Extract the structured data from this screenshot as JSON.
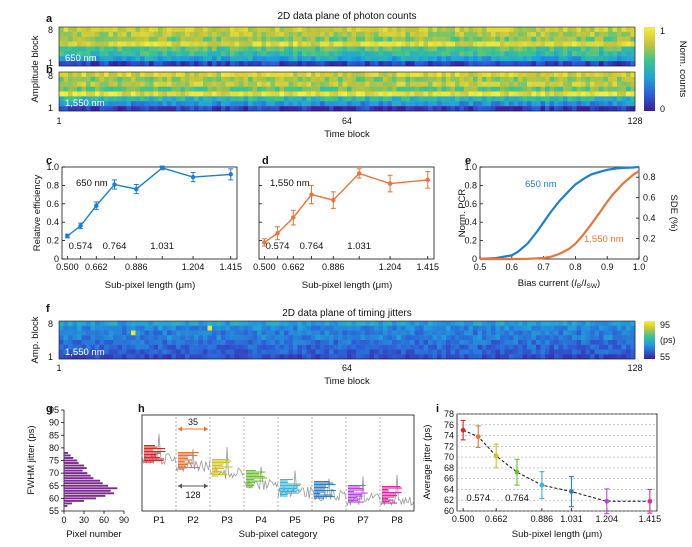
{
  "panels": {
    "a": "a",
    "b": "b",
    "c": "c",
    "d": "d",
    "e": "e",
    "f": "f",
    "g": "g",
    "h": "h",
    "i": "i"
  },
  "heatmap_ab": {
    "title": "2D data plane of photon counts",
    "ylabel": "Amplitude block",
    "xlabel": "Time block",
    "x_ticks": [
      "1",
      "64",
      "128"
    ],
    "y_ticks_a": [
      "8",
      "1"
    ],
    "y_ticks_b": [
      "8",
      "1"
    ],
    "label_a": "650 nm",
    "label_b": "1,550 nm",
    "colorbar_label": "Norm. counts",
    "colorbar_ticks": [
      "1",
      "0"
    ]
  },
  "heatmap_f": {
    "title": "2D data plane of timing jitters",
    "ylabel": "Amp. block",
    "xlabel": "Time block",
    "x_ticks": [
      "1",
      "64",
      "128"
    ],
    "y_ticks": [
      "8",
      "1"
    ],
    "label": "1,550 nm",
    "colorbar_label": "(ps)",
    "colorbar_ticks": [
      "95",
      "55"
    ]
  },
  "panel_h": {
    "xlabel": "Sub-pixel category",
    "categories": [
      "P1",
      "P2",
      "P3",
      "P4",
      "P5",
      "P6",
      "P7",
      "P8"
    ],
    "annot_35": "35",
    "annot_128": "128"
  },
  "colors": {
    "c_line": "#1a7fd0",
    "d_line": "#e8743a",
    "e_650": "#1a7fd0",
    "e_1550": "#e8743a",
    "g_bars": "#7b2d8e",
    "h_p1": "#d62728",
    "h_p2": "#e8743a",
    "h_p3": "#d4c020",
    "h_p4": "#6abf3a",
    "h_p5": "#35b7d8",
    "h_p6": "#2f7fc4",
    "h_p7": "#b64ad6",
    "h_p8": "#e02aa0"
  },
  "chart_data": [
    {
      "id": "c",
      "type": "line",
      "title": "",
      "annotation": "650 nm",
      "xlabel": "Sub-pixel length (μm)",
      "ylabel": "Relative efficiency",
      "x_tick_labels_bottom": [
        "0.500",
        "0.662",
        "0.886",
        "1.204",
        "1.415"
      ],
      "x_tick_labels_inner": [
        "0.574",
        "0.764",
        "1.031"
      ],
      "y_tick_labels": [
        "0",
        "0.2",
        "0.4",
        "0.6",
        "0.8",
        "1.0"
      ],
      "xlim": [
        0.47,
        1.45
      ],
      "ylim": [
        0,
        1.0
      ],
      "x": [
        0.5,
        0.574,
        0.662,
        0.764,
        0.886,
        1.031,
        1.204,
        1.415
      ],
      "y": [
        0.25,
        0.36,
        0.58,
        0.81,
        0.76,
        0.99,
        0.89,
        0.92
      ],
      "err": [
        0.02,
        0.03,
        0.04,
        0.05,
        0.05,
        0.02,
        0.05,
        0.06
      ]
    },
    {
      "id": "d",
      "type": "line",
      "title": "",
      "annotation": "1,550 nm",
      "xlabel": "Sub-pixel length (μm)",
      "ylabel": "",
      "x_tick_labels_bottom": [
        "0.500",
        "0.662",
        "0.886",
        "1.204",
        "1.415"
      ],
      "x_tick_labels_inner": [
        "0.574",
        "0.764",
        "1.031"
      ],
      "xlim": [
        0.47,
        1.45
      ],
      "ylim": [
        0,
        1.0
      ],
      "x": [
        0.5,
        0.574,
        0.662,
        0.764,
        0.886,
        1.031,
        1.204,
        1.415
      ],
      "y": [
        0.18,
        0.28,
        0.45,
        0.7,
        0.64,
        0.93,
        0.82,
        0.86
      ],
      "err": [
        0.04,
        0.07,
        0.08,
        0.1,
        0.09,
        0.05,
        0.09,
        0.09
      ]
    },
    {
      "id": "e",
      "type": "line",
      "xlabel": "Bias current (I_B/I_SW)",
      "xlabel_parts": [
        "Bias current (",
        "I",
        "B",
        "/",
        "I",
        "SW",
        ")"
      ],
      "ylabel_left": "Norm. PCR",
      "ylabel_right": "SDE (%)",
      "x_tick_labels": [
        "0.5",
        "0.6",
        "0.7",
        "0.8",
        "0.9",
        "1.0"
      ],
      "y_left_tick_labels": [
        "0",
        "0.2",
        "0.4",
        "0.6",
        "0.8",
        "1.0"
      ],
      "y_right_tick_labels": [
        "0",
        "0.2",
        "0.4",
        "0.6",
        "0.8"
      ],
      "xlim": [
        0.5,
        1.0
      ],
      "ylim_left": [
        0,
        1.0
      ],
      "ylim_right": [
        0,
        0.9
      ],
      "series": [
        {
          "name": "650 nm",
          "axis": "left",
          "x": [
            0.5,
            0.55,
            0.6,
            0.62,
            0.65,
            0.68,
            0.7,
            0.72,
            0.75,
            0.78,
            0.8,
            0.83,
            0.85,
            0.88,
            0.9,
            0.93,
            0.95,
            0.98,
            1.0
          ],
          "y": [
            0.0,
            0.01,
            0.04,
            0.08,
            0.17,
            0.3,
            0.4,
            0.5,
            0.63,
            0.74,
            0.81,
            0.88,
            0.92,
            0.95,
            0.97,
            0.985,
            0.99,
            0.995,
            1.0
          ]
        },
        {
          "name": "1,550 nm",
          "axis": "right",
          "x": [
            0.5,
            0.6,
            0.65,
            0.7,
            0.72,
            0.75,
            0.78,
            0.8,
            0.82,
            0.85,
            0.88,
            0.9,
            0.92,
            0.95,
            0.98,
            1.0
          ],
          "y": [
            0.0,
            0.0,
            0.002,
            0.01,
            0.02,
            0.05,
            0.1,
            0.15,
            0.22,
            0.34,
            0.47,
            0.56,
            0.64,
            0.74,
            0.82,
            0.86
          ]
        }
      ]
    },
    {
      "id": "g",
      "type": "bar",
      "orientation": "horizontal",
      "xlabel": "Pixel number",
      "ylabel": "FWHM jitter (ps)",
      "x_tick_labels": [
        "0",
        "30",
        "60",
        "90"
      ],
      "y_tick_labels": [
        "55",
        "60",
        "65",
        "70",
        "75",
        "80",
        "85",
        "90",
        "95"
      ],
      "xlim": [
        0,
        90
      ],
      "ylim": [
        55,
        95
      ],
      "bin_centers": [
        57,
        58,
        59,
        60,
        61,
        62,
        63,
        64,
        65,
        66,
        67,
        68,
        69,
        70,
        71,
        72,
        73,
        74,
        75,
        76,
        77,
        78
      ],
      "counts": [
        5,
        12,
        30,
        48,
        62,
        75,
        70,
        80,
        66,
        58,
        54,
        44,
        40,
        35,
        28,
        34,
        30,
        22,
        20,
        14,
        10,
        6
      ]
    },
    {
      "id": "i",
      "type": "scatter",
      "xlabel": "Sub-pixel length (μm)",
      "ylabel": "Average jitter (ps)",
      "x_tick_labels_bottom": [
        "0.500",
        "0.662",
        "0.886",
        "1.031",
        "1.204",
        "1.415"
      ],
      "x_tick_labels_inner": [
        "0.574",
        "0.764"
      ],
      "y_tick_labels": [
        "60",
        "62",
        "64",
        "66",
        "68",
        "70",
        "72",
        "74",
        "76",
        "78"
      ],
      "xlim": [
        0.47,
        1.45
      ],
      "ylim": [
        60,
        78
      ],
      "x": [
        0.5,
        0.574,
        0.662,
        0.764,
        0.886,
        1.031,
        1.204,
        1.415
      ],
      "y": [
        75.0,
        73.8,
        70.2,
        67.2,
        64.8,
        63.6,
        61.8,
        61.8
      ],
      "err": [
        1.8,
        2.0,
        2.2,
        2.4,
        2.5,
        2.8,
        2.3,
        2.2
      ]
    }
  ]
}
